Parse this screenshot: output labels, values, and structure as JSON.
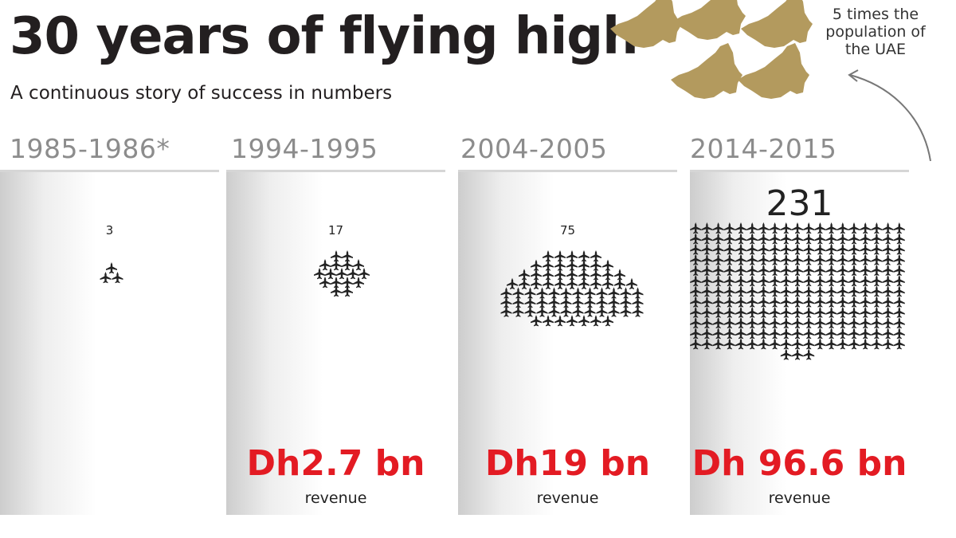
{
  "header": {
    "title": "30 years of flying high",
    "subtitle": "A continuous story of success in numbers"
  },
  "annotation": {
    "text": "5 times the population of the UAE",
    "map_icon": "uae-map-icon",
    "map_count": 5,
    "map_color": "#b39a5e"
  },
  "colors": {
    "revenue": "#e31b23",
    "plane": "#222222",
    "period": "#8c8c8c"
  },
  "chart_data": {
    "type": "pictogram",
    "icon": "airplane-icon",
    "categories": [
      "1985-1986*",
      "1994-1995",
      "2004-2005",
      "2014-2015"
    ],
    "series": [
      {
        "values": [
          3,
          17,
          75,
          231
        ]
      },
      {
        "values": [
          null,
          "Dh2.7 bn",
          "Dh19 bn",
          "Dh 96.6 bn"
        ]
      }
    ],
    "revenue_label": "revenue"
  }
}
